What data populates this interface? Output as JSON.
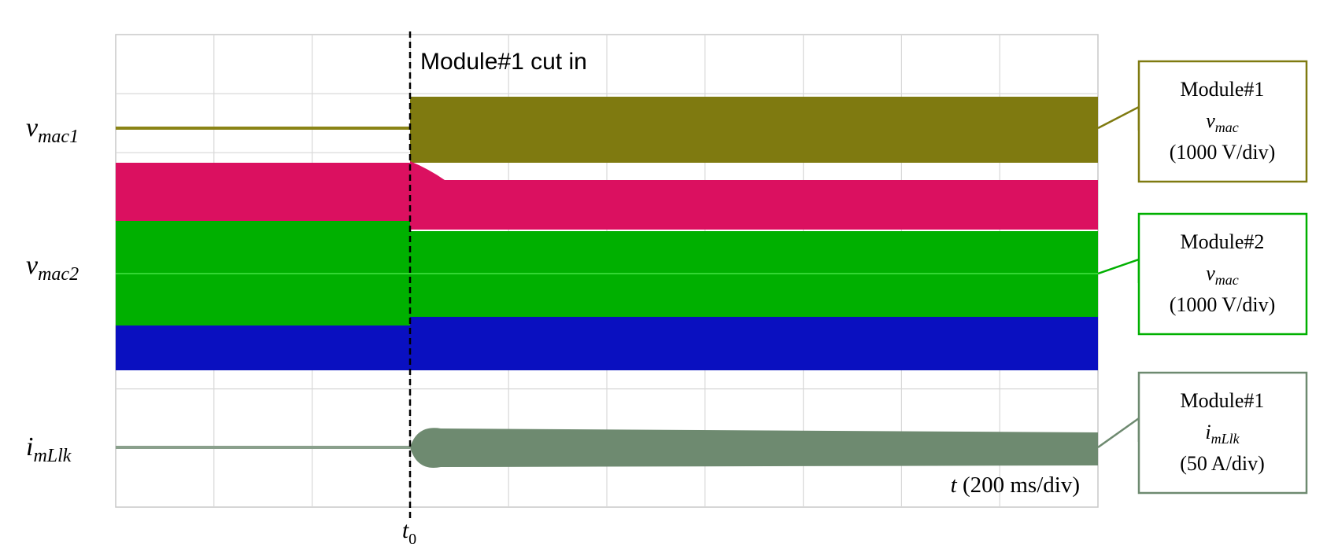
{
  "event_label": "Module#1 cut in",
  "time_scale": {
    "symbol": "t",
    "text": "(200 ms/div)"
  },
  "marker": {
    "symbol": "t",
    "subscript": "0"
  },
  "traces": [
    {
      "symbol": "v",
      "subscript": "mac1"
    },
    {
      "symbol": "v",
      "subscript": "mac2"
    },
    {
      "symbol": "i",
      "subscript": "mLlk"
    }
  ],
  "boxes": [
    {
      "title": "Module#1",
      "symbol": "v",
      "subscript": "mac",
      "scale": "(1000 V/div)"
    },
    {
      "title": "Module#2",
      "symbol": "v",
      "subscript": "mac",
      "scale": "(1000 V/div)"
    },
    {
      "title": "Module#1",
      "symbol": "i",
      "subscript": "mLlk",
      "scale": "(50 A/div)"
    }
  ]
}
